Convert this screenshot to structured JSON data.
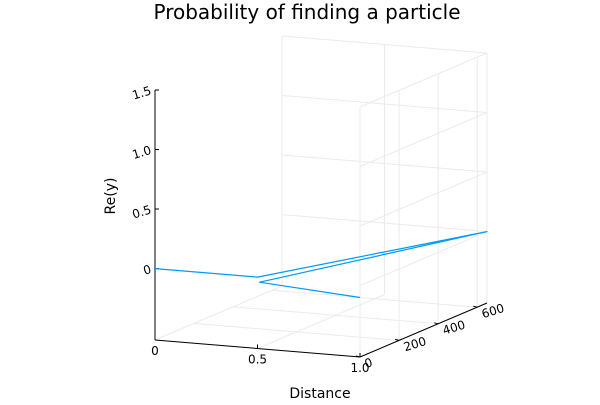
{
  "chart_data": {
    "type": "line",
    "projection": "3d",
    "title": "Probability of finding a particle",
    "xlabel": "Distance",
    "ylabel": "",
    "zlabel": "Re(y)",
    "xlim": [
      0,
      1.0
    ],
    "ylim": [
      0,
      650
    ],
    "zlim": [
      -0.6,
      1.5
    ],
    "x_ticks": [
      "0",
      "0.5",
      "1.0"
    ],
    "y_ticks": [
      "0",
      "200",
      "400",
      "600"
    ],
    "z_ticks": [
      "0",
      "0.5",
      "1.0",
      "1.5"
    ],
    "grid": true,
    "legend": "none",
    "series": [
      {
        "color": "#009af9",
        "points": [
          {
            "x": 0.0,
            "y": 0,
            "z": 0.0
          },
          {
            "x": 0.5,
            "y": 0,
            "z": 0.0
          },
          {
            "x": 1.0,
            "y": 650,
            "z": 0.0
          },
          {
            "x": 0.5,
            "y": 10,
            "z": -0.05
          },
          {
            "x": 1.0,
            "y": 0,
            "z": -0.1
          }
        ]
      }
    ]
  }
}
